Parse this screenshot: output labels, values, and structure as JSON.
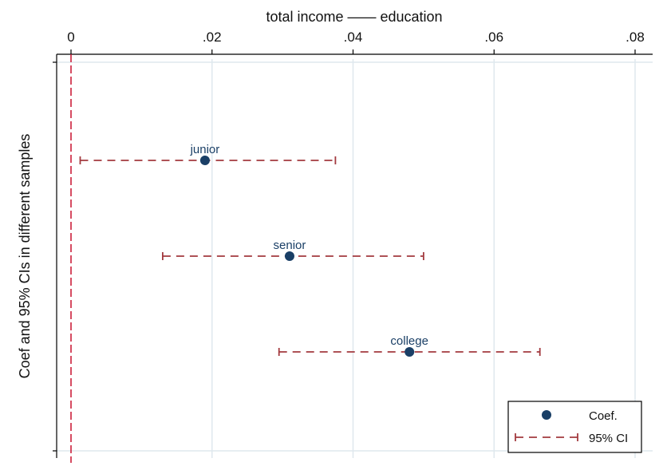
{
  "chart_data": {
    "type": "scatter",
    "title": "total income —— education",
    "ylabel": "Coef and 95% CIs in different samples",
    "xlim": [
      -0.002,
      0.082
    ],
    "x_ticks": [
      0,
      0.02,
      0.04,
      0.06,
      0.08
    ],
    "x_tick_labels": [
      "0",
      ".02",
      ".04",
      ".06",
      ".08"
    ],
    "x_axis_position": "top",
    "reference_line_x": 0,
    "grid": true,
    "legend_position": "bottom-right",
    "series": [
      {
        "name": "Coef.",
        "points": [
          {
            "label": "junior",
            "x": 0.019,
            "ci_low": 0.0013,
            "ci_high": 0.0375
          },
          {
            "label": "senior",
            "x": 0.031,
            "ci_low": 0.013,
            "ci_high": 0.05
          },
          {
            "label": "college",
            "x": 0.048,
            "ci_low": 0.0295,
            "ci_high": 0.0665
          }
        ]
      }
    ],
    "legend": [
      "Coef.",
      "95% CI"
    ],
    "colors": {
      "marker": "#1a3f66",
      "ci": "#a33a3f",
      "refline": "#c8102e",
      "grid": "#dfe8ee",
      "label_text": "#1a3f66"
    }
  }
}
